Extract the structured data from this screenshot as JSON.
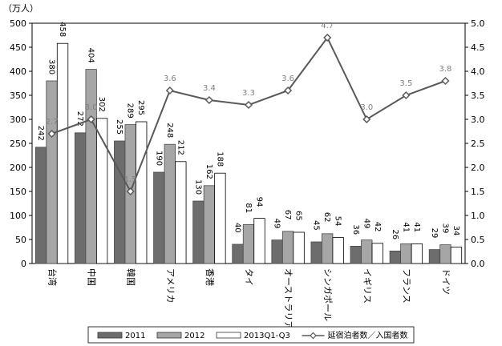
{
  "chart_data": {
    "type": "bar",
    "unit_label": "（万人）",
    "categories": [
      "台湾",
      "中国",
      "韓国",
      "アメリカ",
      "香港",
      "タイ",
      "オーストラリア",
      "シンガポール",
      "イギリス",
      "フランス",
      "ドイツ"
    ],
    "series": [
      {
        "name": "2011",
        "type": "bar",
        "axis": "left",
        "color": "#6d6d6d",
        "values": [
          242,
          272,
          255,
          190,
          130,
          40,
          49,
          45,
          36,
          26,
          29
        ]
      },
      {
        "name": "2012",
        "type": "bar",
        "axis": "left",
        "color": "#a6a6a6",
        "values": [
          380,
          404,
          289,
          248,
          162,
          81,
          67,
          62,
          49,
          41,
          39
        ]
      },
      {
        "name": "2013Q1-Q3",
        "type": "bar",
        "axis": "left",
        "color": "#ffffff",
        "values": [
          458,
          302,
          295,
          212,
          188,
          94,
          65,
          54,
          42,
          41,
          34
        ]
      },
      {
        "name": "延宿泊者数／入国者数",
        "type": "line",
        "axis": "right",
        "color": "#595959",
        "values": [
          2.7,
          3.0,
          1.5,
          3.6,
          3.4,
          3.3,
          3.6,
          4.7,
          3.0,
          3.5,
          3.8
        ]
      }
    ],
    "y_left": {
      "min": 0,
      "max": 500,
      "step": 50
    },
    "y_right": {
      "min": 0,
      "max": 5,
      "step": 0.5
    },
    "grid": false,
    "legend_position": "bottom"
  }
}
